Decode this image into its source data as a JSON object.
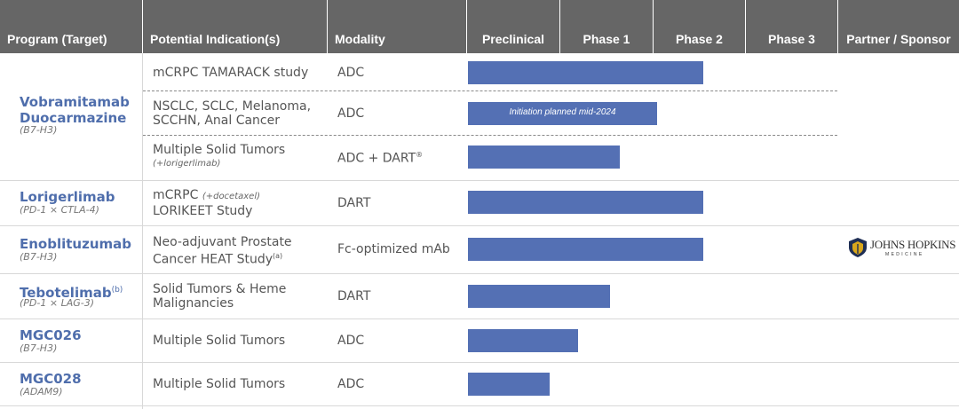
{
  "headers": {
    "program": "Program (Target)",
    "indication": "Potential Indication(s)",
    "modality": "Modality",
    "preclinical": "Preclinical",
    "phase1": "Phase 1",
    "phase2": "Phase 2",
    "phase3": "Phase 3",
    "partner": "Partner / Sponsor"
  },
  "colors": {
    "header_bg": "#666666",
    "bar": "#5470b4",
    "program_name": "#4f6eac"
  },
  "programs": [
    {
      "name": "Vobramitamab Duocarmazine",
      "name_line1": "Vobramitamab",
      "name_line2": "Duocarmazine",
      "target": "(B7-H3)"
    },
    {
      "name": "Lorigerlimab",
      "target": "(PD-1 × CTLA-4)"
    },
    {
      "name": "Enoblituzumab",
      "target": "(B7-H3)"
    },
    {
      "name": "Tebotelimab",
      "note": "(b)",
      "target": "(PD-1 × LAG-3)"
    },
    {
      "name": "MGC026",
      "target": "(B7-H3)"
    },
    {
      "name": "MGC028",
      "target": "(ADAM9)"
    }
  ],
  "rows": [
    {
      "program": "Vobramitamab Duocarmazine",
      "indication": "mCRPC TAMARACK study",
      "modality": "ADC",
      "progress_phase": 2.0
    },
    {
      "program": "Vobramitamab Duocarmazine",
      "indication_line1": "NSCLC, SCLC, Melanoma,",
      "indication_line2": "SCCHN, Anal Cancer",
      "modality": "ADC",
      "progress_phase": 1.5,
      "bar_note": "Initiation planned mid-2024"
    },
    {
      "program": "Vobramitamab Duocarmazine",
      "indication": "Multiple Solid Tumors",
      "indication_sub": "(+lorigerlimab)",
      "modality": "ADC + DART",
      "modality_mark": "®",
      "progress_phase": 1.1
    },
    {
      "program": "Lorigerlimab",
      "indication_line1": "mCRPC",
      "indication_sub": "(+docetaxel)",
      "indication_line2": "LORIKEET Study",
      "modality": "DART",
      "progress_phase": 2.0
    },
    {
      "program": "Enoblituzumab",
      "indication_line1": "Neo-adjuvant Prostate",
      "indication_line2": "Cancer HEAT Study",
      "indication_note": "(a)",
      "modality": "Fc-optimized mAb",
      "progress_phase": 2.0,
      "partner": {
        "logo_text": "JOHNS HOPKINS",
        "logo_sub": "MEDICINE"
      }
    },
    {
      "program": "Tebotelimab",
      "indication_line1": "Solid Tumors & Heme",
      "indication_line2": "Malignancies",
      "modality": "DART",
      "progress_phase": 1.0
    },
    {
      "program": "MGC026",
      "indication": "Multiple Solid Tumors",
      "modality": "ADC",
      "progress_phase": 0.7
    },
    {
      "program": "MGC028",
      "indication": "Multiple Solid Tumors",
      "modality": "ADC",
      "progress_phase": 0.4
    }
  ]
}
